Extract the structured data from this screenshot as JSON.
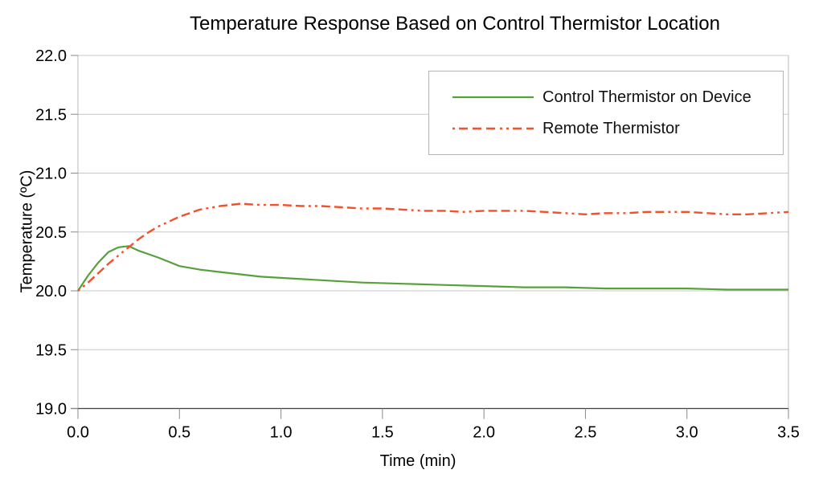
{
  "chart_data": {
    "type": "line",
    "title": "Temperature Response Based on Control Thermistor Location",
    "xlabel": "Time (min)",
    "ylabel": "Temperature (ºC)",
    "xlim": [
      0.0,
      3.5
    ],
    "ylim": [
      19.0,
      22.0
    ],
    "xticks": [
      0.0,
      0.5,
      1.0,
      1.5,
      2.0,
      2.5,
      3.0,
      3.5
    ],
    "yticks": [
      19.0,
      19.5,
      20.0,
      20.5,
      21.0,
      21.5,
      22.0
    ],
    "grid": "horizontal",
    "legend_position": "top-right-inside",
    "colors": {
      "gridline": "#c9c9c9",
      "axis": "#3f3f3f",
      "plot_border": "#b9b9b9",
      "tick_mark": "#8a8a8a"
    },
    "series": [
      {
        "name": "Control Thermistor on Device",
        "color": "#57a13c",
        "style": "solid",
        "x": [
          0,
          0.05,
          0.1,
          0.15,
          0.2,
          0.25,
          0.3,
          0.4,
          0.5,
          0.6,
          0.7,
          0.8,
          0.9,
          1.0,
          1.2,
          1.4,
          1.6,
          1.8,
          2.0,
          2.2,
          2.4,
          2.6,
          2.8,
          3.0,
          3.2,
          3.4,
          3.5
        ],
        "y": [
          20.0,
          20.13,
          20.24,
          20.33,
          20.37,
          20.38,
          20.34,
          20.28,
          20.21,
          20.18,
          20.16,
          20.14,
          20.12,
          20.11,
          20.09,
          20.07,
          20.06,
          20.05,
          20.04,
          20.03,
          20.03,
          20.02,
          20.02,
          20.02,
          20.01,
          20.01,
          20.01
        ]
      },
      {
        "name": "Remote Thermistor",
        "color": "#f4502a",
        "style": "dash-dot-dot",
        "x": [
          0,
          0.05,
          0.1,
          0.15,
          0.2,
          0.25,
          0.3,
          0.35,
          0.4,
          0.5,
          0.6,
          0.7,
          0.8,
          0.9,
          1.0,
          1.1,
          1.2,
          1.3,
          1.4,
          1.5,
          1.6,
          1.7,
          1.8,
          1.9,
          2.0,
          2.1,
          2.2,
          2.3,
          2.4,
          2.5,
          2.6,
          2.7,
          2.8,
          2.9,
          3.0,
          3.1,
          3.2,
          3.3,
          3.4,
          3.5
        ],
        "y": [
          20.0,
          20.07,
          20.15,
          20.23,
          20.3,
          20.37,
          20.44,
          20.5,
          20.55,
          20.63,
          20.69,
          20.72,
          20.74,
          20.73,
          20.73,
          20.72,
          20.72,
          20.71,
          20.7,
          20.7,
          20.69,
          20.68,
          20.68,
          20.67,
          20.68,
          20.68,
          20.68,
          20.67,
          20.66,
          20.65,
          20.66,
          20.66,
          20.67,
          20.67,
          20.67,
          20.66,
          20.65,
          20.65,
          20.66,
          20.67
        ]
      }
    ]
  }
}
